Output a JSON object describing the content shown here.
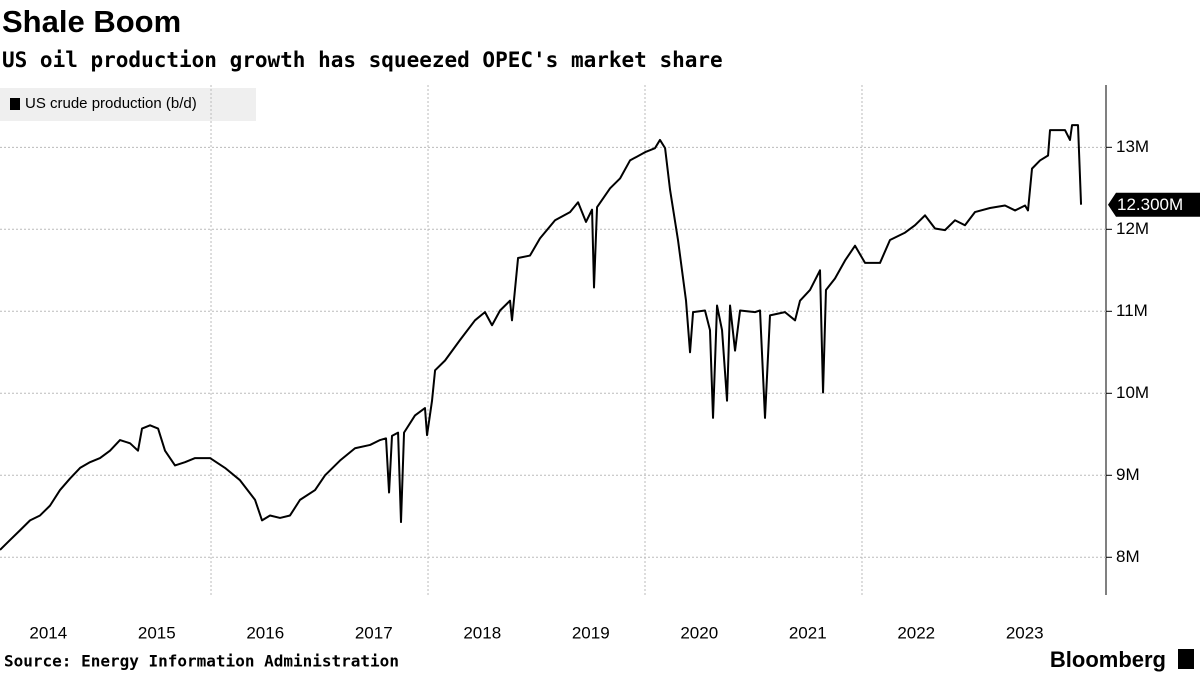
{
  "chart_data": {
    "type": "line",
    "title": "Shale Boom",
    "subtitle": "US oil production growth has squeezed OPEC's market share",
    "source": "Source: Energy Information Administration",
    "brand": "Bloomberg",
    "x": [
      2014.055,
      2014.147,
      2014.24,
      2014.332,
      2014.424,
      2014.516,
      2014.608,
      2014.7,
      2014.793,
      2014.885,
      2014.977,
      2015.069,
      2015.161,
      2015.254,
      2015.327,
      2015.364,
      2015.438,
      2015.512,
      2015.576,
      2015.668,
      2015.76,
      2015.853,
      2015.991,
      2016.129,
      2016.267,
      2016.406,
      2016.47,
      2016.544,
      2016.636,
      2016.728,
      2016.82,
      2016.959,
      2017.051,
      2017.189,
      2017.327,
      2017.466,
      2017.558,
      2017.613,
      2017.641,
      2017.668,
      2017.724,
      2017.751,
      2017.779,
      2017.88,
      2017.972,
      2017.991,
      2018.037,
      2018.065,
      2018.157,
      2018.295,
      2018.433,
      2018.525,
      2018.59,
      2018.664,
      2018.756,
      2018.774,
      2018.83,
      2018.94,
      2019.032,
      2019.171,
      2019.309,
      2019.383,
      2019.456,
      2019.512,
      2019.53,
      2019.558,
      2019.678,
      2019.77,
      2019.862,
      2020.0,
      2020.092,
      2020.138,
      2020.185,
      2020.231,
      2020.304,
      2020.378,
      2020.415,
      2020.443,
      2020.553,
      2020.599,
      2020.627,
      2020.664,
      2020.71,
      2020.756,
      2020.784,
      2020.83,
      2020.876,
      2021.014,
      2021.06,
      2021.106,
      2021.152,
      2021.29,
      2021.383,
      2021.429,
      2021.521,
      2021.613,
      2021.641,
      2021.668,
      2021.751,
      2021.844,
      2021.936,
      2022.028,
      2022.166,
      2022.258,
      2022.397,
      2022.489,
      2022.581,
      2022.673,
      2022.765,
      2022.857,
      2022.949,
      2023.041,
      2023.18,
      2023.318,
      2023.411,
      2023.503,
      2023.53,
      2023.567,
      2023.641,
      2023.715,
      2023.733,
      2023.871,
      2023.917,
      2023.936,
      2023.991,
      2024.019
    ],
    "series": [
      {
        "name": "US crude production (b/d)",
        "color": "#000000",
        "values": [
          8.09,
          8.21,
          8.33,
          8.45,
          8.51,
          8.63,
          8.82,
          8.96,
          9.09,
          9.16,
          9.21,
          9.3,
          9.43,
          9.39,
          9.3,
          9.57,
          9.61,
          9.57,
          9.3,
          9.12,
          9.16,
          9.21,
          9.21,
          9.09,
          8.94,
          8.7,
          8.45,
          8.51,
          8.48,
          8.51,
          8.7,
          8.82,
          9.0,
          9.18,
          9.33,
          9.37,
          9.43,
          9.45,
          8.79,
          9.48,
          9.52,
          8.43,
          9.52,
          9.73,
          9.82,
          9.49,
          9.91,
          10.28,
          10.4,
          10.65,
          10.89,
          10.99,
          10.83,
          11.01,
          11.13,
          10.89,
          11.65,
          11.68,
          11.89,
          12.11,
          12.21,
          12.33,
          12.09,
          12.24,
          11.29,
          12.27,
          12.5,
          12.62,
          12.84,
          12.94,
          12.99,
          13.09,
          12.99,
          12.48,
          11.87,
          11.13,
          10.5,
          10.99,
          11.01,
          10.77,
          9.7,
          11.07,
          10.77,
          9.91,
          11.07,
          10.52,
          11.01,
          10.99,
          11.01,
          9.7,
          10.95,
          10.99,
          10.89,
          11.13,
          11.26,
          11.5,
          10.01,
          11.26,
          11.4,
          11.62,
          11.8,
          11.59,
          11.59,
          11.87,
          11.96,
          12.05,
          12.17,
          12.01,
          11.99,
          12.11,
          12.05,
          12.21,
          12.26,
          12.29,
          12.23,
          12.29,
          12.23,
          12.74,
          12.84,
          12.9,
          13.21,
          13.21,
          13.09,
          13.27,
          13.27,
          12.3
        ]
      }
    ],
    "last_label": "12.300M",
    "xlim": [
      2014.055,
      2024.249
    ],
    "xticks": [
      2014,
      2015,
      2016,
      2017,
      2018,
      2019,
      2020,
      2021,
      2022,
      2023
    ],
    "xgrid": [
      2016,
      2018,
      2020,
      2022
    ],
    "ylim": [
      7.54,
      13.76
    ],
    "yticks": [
      {
        "value": 8,
        "label": "8M"
      },
      {
        "value": 9,
        "label": "9M"
      },
      {
        "value": 10,
        "label": "10M"
      },
      {
        "value": 11,
        "label": "11M"
      },
      {
        "value": 12,
        "label": "12M"
      },
      {
        "value": 13,
        "label": "13M"
      }
    ],
    "grid": true
  }
}
